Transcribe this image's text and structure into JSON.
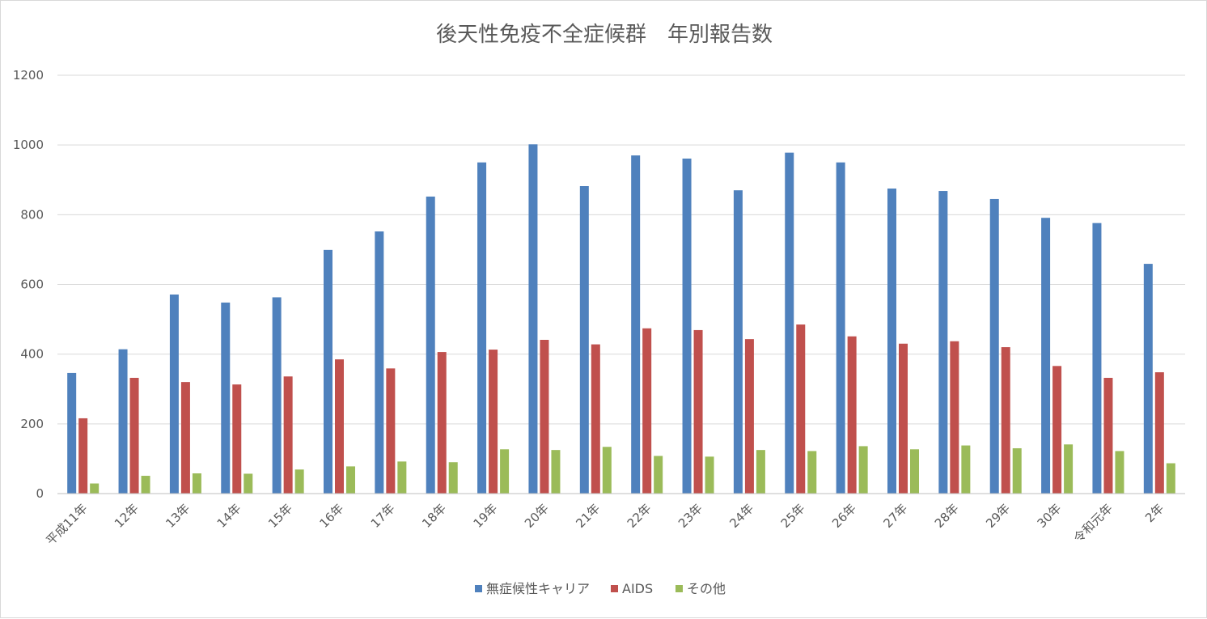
{
  "chart_data": {
    "type": "bar",
    "title": "後天性免疫不全症候群　年別報告数",
    "xlabel": "",
    "ylabel": "",
    "ylim": [
      0,
      1200
    ],
    "yticks": [
      0,
      200,
      400,
      600,
      800,
      1000,
      1200
    ],
    "grid": true,
    "legend_position": "bottom",
    "categories": [
      "平成11年",
      "12年",
      "13年",
      "14年",
      "15年",
      "16年",
      "17年",
      "18年",
      "19年",
      "20年",
      "21年",
      "22年",
      "23年",
      "24年",
      "25年",
      "26年",
      "27年",
      "28年",
      "29年",
      "30年",
      "令和元年",
      "2年"
    ],
    "series": [
      {
        "name": "無症候性キャリア",
        "color": "#4f81bd",
        "values": [
          346,
          414,
          571,
          548,
          563,
          699,
          752,
          852,
          950,
          1002,
          882,
          970,
          961,
          870,
          978,
          950,
          875,
          868,
          845,
          791,
          776,
          659
        ]
      },
      {
        "name": "AIDS",
        "color": "#c0504d",
        "values": [
          216,
          332,
          320,
          313,
          336,
          385,
          359,
          406,
          413,
          441,
          428,
          474,
          469,
          443,
          485,
          451,
          430,
          437,
          420,
          366,
          332,
          348
        ]
      },
      {
        "name": "その他",
        "color": "#9bbb59",
        "values": [
          29,
          51,
          58,
          57,
          69,
          78,
          92,
          90,
          127,
          125,
          134,
          108,
          106,
          125,
          122,
          136,
          127,
          138,
          130,
          141,
          122,
          87
        ]
      }
    ]
  }
}
